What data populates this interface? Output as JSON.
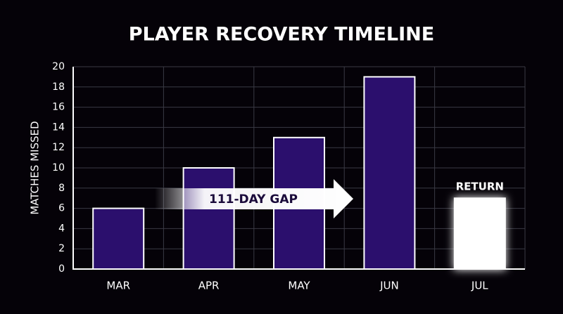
{
  "chart_data": {
    "type": "bar",
    "title": "PLAYER RECOVERY TIMELINE",
    "y_label": "MATCHES MISSED",
    "categories": [
      "MAR",
      "APR",
      "MAY",
      "JUN",
      "JUL"
    ],
    "values": [
      6,
      10,
      13,
      19,
      7
    ],
    "colors": [
      "#2b0f6d",
      "#2b0f6d",
      "#2b0f6d",
      "#2b0f6d",
      "#ffffff"
    ],
    "ylim": [
      0,
      20
    ],
    "yticks": [
      0,
      2,
      4,
      6,
      8,
      10,
      12,
      14,
      16,
      18,
      20
    ],
    "grid": true,
    "annotations": {
      "gap": "111-DAY GAP",
      "return": "RETURN"
    }
  }
}
